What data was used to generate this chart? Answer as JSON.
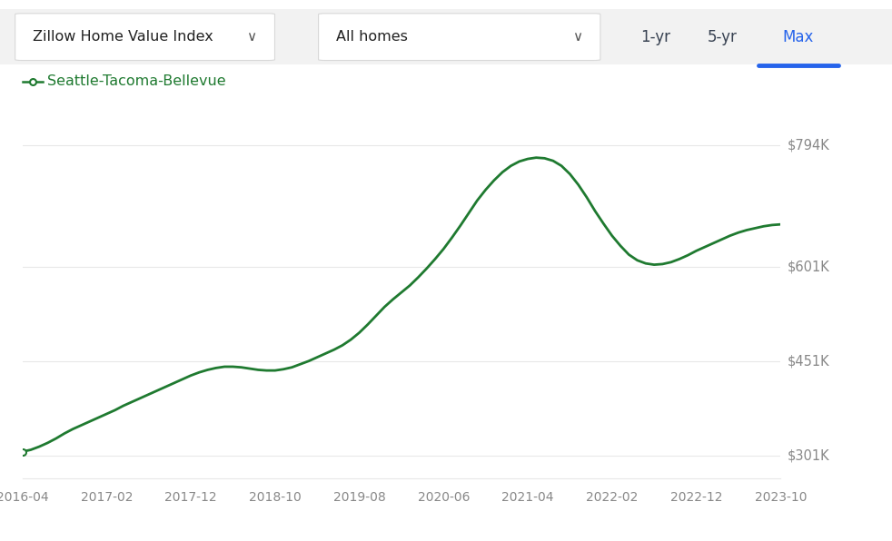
{
  "legend_label": "Seattle-Tacoma-Bellevue",
  "line_color": "#1f7a30",
  "background_color": "#ffffff",
  "grid_color": "#e8e8e8",
  "x_labels": [
    "2016-04",
    "2017-02",
    "2017-12",
    "2018-10",
    "2019-08",
    "2020-06",
    "2021-04",
    "2022-02",
    "2022-12",
    "2023-10"
  ],
  "y_ticks": [
    301000,
    451000,
    601000,
    794000
  ],
  "y_tick_labels": [
    "$301K",
    "$451K",
    "$601K",
    "$794K"
  ],
  "ylim": [
    265000,
    875000
  ],
  "data_y": [
    308000,
    311000,
    316000,
    322000,
    329000,
    337000,
    344000,
    350000,
    356000,
    362000,
    368000,
    374000,
    381000,
    387000,
    393000,
    399000,
    405000,
    411000,
    417000,
    423000,
    429000,
    434000,
    438000,
    441000,
    443000,
    443000,
    442000,
    440000,
    438000,
    437000,
    437000,
    439000,
    442000,
    447000,
    452000,
    458000,
    464000,
    470000,
    477000,
    486000,
    497000,
    510000,
    524000,
    538000,
    550000,
    561000,
    572000,
    585000,
    599000,
    614000,
    630000,
    648000,
    667000,
    687000,
    707000,
    724000,
    739000,
    752000,
    762000,
    769000,
    773000,
    775000,
    774000,
    770000,
    762000,
    749000,
    732000,
    712000,
    690000,
    670000,
    651000,
    635000,
    621000,
    612000,
    607000,
    605000,
    606000,
    609000,
    614000,
    620000,
    627000,
    633000,
    639000,
    645000,
    651000,
    656000,
    660000,
    663000,
    666000,
    668000,
    669000
  ],
  "header_bg": "#f7f7f7",
  "header_border": "#d8d8d8",
  "dropdown1_text": "Zillow Home Value Index",
  "dropdown2_text": "All homes",
  "btn_1yr": "1-yr",
  "btn_5yr": "5-yr",
  "btn_max": "Max",
  "active_btn_color": "#2563eb",
  "inactive_btn_color": "#374151",
  "legend_marker_color": "#1f7a30"
}
